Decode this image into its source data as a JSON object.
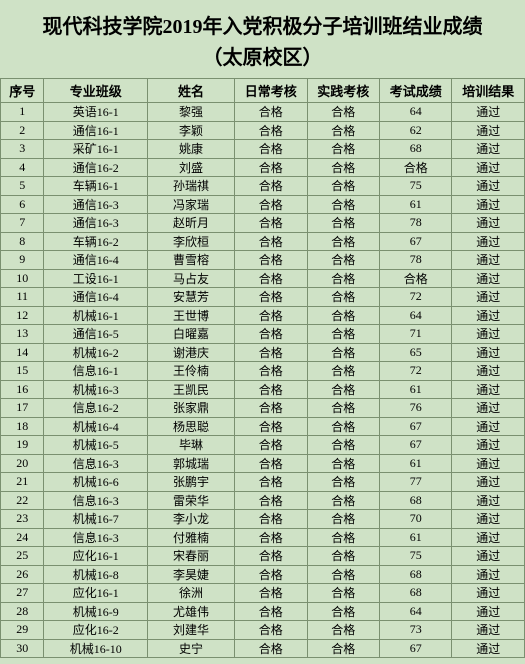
{
  "title_line1": "现代科技学院2019年入党积极分子培训班结业成绩",
  "title_line2": "（太原校区）",
  "headers": {
    "seq": "序号",
    "class": "专业班级",
    "name": "姓名",
    "daily": "日常考核",
    "practice": "实践考核",
    "exam": "考试成绩",
    "result": "培训结果"
  },
  "rows": [
    {
      "seq": "1",
      "class": "英语16-1",
      "name": "黎强",
      "daily": "合格",
      "practice": "合格",
      "exam": "64",
      "result": "通过"
    },
    {
      "seq": "2",
      "class": "通信16-1",
      "name": "李颖",
      "daily": "合格",
      "practice": "合格",
      "exam": "62",
      "result": "通过"
    },
    {
      "seq": "3",
      "class": "采矿16-1",
      "name": "姚康",
      "daily": "合格",
      "practice": "合格",
      "exam": "68",
      "result": "通过"
    },
    {
      "seq": "4",
      "class": "通信16-2",
      "name": "刘盛",
      "daily": "合格",
      "practice": "合格",
      "exam": "合格",
      "result": "通过"
    },
    {
      "seq": "5",
      "class": "车辆16-1",
      "name": "孙瑞祺",
      "daily": "合格",
      "practice": "合格",
      "exam": "75",
      "result": "通过"
    },
    {
      "seq": "6",
      "class": "通信16-3",
      "name": "冯家瑞",
      "daily": "合格",
      "practice": "合格",
      "exam": "61",
      "result": "通过"
    },
    {
      "seq": "7",
      "class": "通信16-3",
      "name": "赵昕月",
      "daily": "合格",
      "practice": "合格",
      "exam": "78",
      "result": "通过"
    },
    {
      "seq": "8",
      "class": "车辆16-2",
      "name": "李欣桓",
      "daily": "合格",
      "practice": "合格",
      "exam": "67",
      "result": "通过"
    },
    {
      "seq": "9",
      "class": "通信16-4",
      "name": "曹雪榕",
      "daily": "合格",
      "practice": "合格",
      "exam": "78",
      "result": "通过"
    },
    {
      "seq": "10",
      "class": "工设16-1",
      "name": "马占友",
      "daily": "合格",
      "practice": "合格",
      "exam": "合格",
      "result": "通过"
    },
    {
      "seq": "11",
      "class": "通信16-4",
      "name": "安慧芳",
      "daily": "合格",
      "practice": "合格",
      "exam": "72",
      "result": "通过"
    },
    {
      "seq": "12",
      "class": "机械16-1",
      "name": "王世博",
      "daily": "合格",
      "practice": "合格",
      "exam": "64",
      "result": "通过"
    },
    {
      "seq": "13",
      "class": "通信16-5",
      "name": "白曜嘉",
      "daily": "合格",
      "practice": "合格",
      "exam": "71",
      "result": "通过"
    },
    {
      "seq": "14",
      "class": "机械16-2",
      "name": "谢港庆",
      "daily": "合格",
      "practice": "合格",
      "exam": "65",
      "result": "通过"
    },
    {
      "seq": "15",
      "class": "信息16-1",
      "name": "王伶楠",
      "daily": "合格",
      "practice": "合格",
      "exam": "72",
      "result": "通过"
    },
    {
      "seq": "16",
      "class": "机械16-3",
      "name": "王凯民",
      "daily": "合格",
      "practice": "合格",
      "exam": "61",
      "result": "通过"
    },
    {
      "seq": "17",
      "class": "信息16-2",
      "name": "张家鼎",
      "daily": "合格",
      "practice": "合格",
      "exam": "76",
      "result": "通过"
    },
    {
      "seq": "18",
      "class": "机械16-4",
      "name": "杨思聪",
      "daily": "合格",
      "practice": "合格",
      "exam": "67",
      "result": "通过"
    },
    {
      "seq": "19",
      "class": "机械16-5",
      "name": "毕琳",
      "daily": "合格",
      "practice": "合格",
      "exam": "67",
      "result": "通过"
    },
    {
      "seq": "20",
      "class": "信息16-3",
      "name": "郭城瑞",
      "daily": "合格",
      "practice": "合格",
      "exam": "61",
      "result": "通过"
    },
    {
      "seq": "21",
      "class": "机械16-6",
      "name": "张鹏宇",
      "daily": "合格",
      "practice": "合格",
      "exam": "77",
      "result": "通过"
    },
    {
      "seq": "22",
      "class": "信息16-3",
      "name": "雷荣华",
      "daily": "合格",
      "practice": "合格",
      "exam": "68",
      "result": "通过"
    },
    {
      "seq": "23",
      "class": "机械16-7",
      "name": "李小龙",
      "daily": "合格",
      "practice": "合格",
      "exam": "70",
      "result": "通过"
    },
    {
      "seq": "24",
      "class": "信息16-3",
      "name": "付雅楠",
      "daily": "合格",
      "practice": "合格",
      "exam": "61",
      "result": "通过"
    },
    {
      "seq": "25",
      "class": "应化16-1",
      "name": "宋春丽",
      "daily": "合格",
      "practice": "合格",
      "exam": "75",
      "result": "通过"
    },
    {
      "seq": "26",
      "class": "机械16-8",
      "name": "李昊婕",
      "daily": "合格",
      "practice": "合格",
      "exam": "68",
      "result": "通过"
    },
    {
      "seq": "27",
      "class": "应化16-1",
      "name": "徐洲",
      "daily": "合格",
      "practice": "合格",
      "exam": "68",
      "result": "通过"
    },
    {
      "seq": "28",
      "class": "机械16-9",
      "name": "尤雄伟",
      "daily": "合格",
      "practice": "合格",
      "exam": "64",
      "result": "通过"
    },
    {
      "seq": "29",
      "class": "应化16-2",
      "name": "刘建华",
      "daily": "合格",
      "practice": "合格",
      "exam": "73",
      "result": "通过"
    },
    {
      "seq": "30",
      "class": "机械16-10",
      "name": "史宁",
      "daily": "合格",
      "practice": "合格",
      "exam": "67",
      "result": "通过"
    }
  ]
}
